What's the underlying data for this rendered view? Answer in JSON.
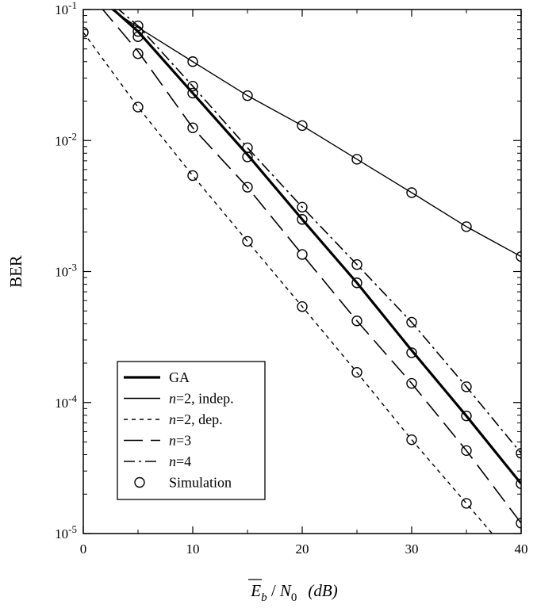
{
  "chart_data": {
    "type": "line",
    "xlabel": {
      "E": "E",
      "E_sub": "b",
      "slash": " / ",
      "N": "N",
      "N_sub": "0",
      "unit": "(dB)"
    },
    "ylabel": "BER",
    "xlim": [
      0,
      40
    ],
    "ylim": [
      1e-05,
      0.1
    ],
    "yscale": "log",
    "grid": false,
    "legend_position": "bottom-left",
    "x_ticks": [
      0,
      10,
      20,
      30,
      40
    ],
    "x_tick_labels": [
      "0",
      "10",
      "20",
      "30",
      "40"
    ],
    "y_ticks": [
      0.1,
      0.01,
      0.001,
      0.0001,
      1e-05
    ],
    "y_tick_labels": [
      {
        "base": "10",
        "exp": "-1"
      },
      {
        "base": "10",
        "exp": "-2"
      },
      {
        "base": "10",
        "exp": "-3"
      },
      {
        "base": "10",
        "exp": "-4"
      },
      {
        "base": "10",
        "exp": "-5"
      }
    ],
    "series": [
      {
        "name": "GA",
        "key": "ga",
        "style": "thick-solid",
        "x": [
          0,
          5,
          10,
          15,
          20,
          25,
          30,
          35,
          40
        ],
        "y": [
          0.16,
          0.068,
          0.023,
          0.0078,
          0.0025,
          0.00082,
          0.00025,
          7.9e-05,
          2.4e-05
        ]
      },
      {
        "name": "n=2, indep.",
        "name_italic": "n",
        "name_rest": "=2, indep.",
        "key": "n2i",
        "style": "thin-solid",
        "x": [
          0,
          5,
          10,
          15,
          20,
          25,
          30,
          35,
          40
        ],
        "y": [
          0.14,
          0.073,
          0.04,
          0.022,
          0.013,
          0.0072,
          0.004,
          0.0022,
          0.0013
        ]
      },
      {
        "name": "n=2, dep.",
        "name_italic": "n",
        "name_rest": "=2, dep.",
        "key": "n2d",
        "style": "dotted",
        "x": [
          0,
          5,
          10,
          15,
          20,
          25,
          30,
          35,
          40
        ],
        "y": [
          0.067,
          0.018,
          0.0054,
          0.0017,
          0.00054,
          0.00017,
          5.2e-05,
          1.7e-05,
          5.5e-06
        ]
      },
      {
        "name": "n=3",
        "name_italic": "n",
        "name_rest": "=3",
        "key": "n3",
        "style": "long-dash",
        "x": [
          0,
          5,
          10,
          15,
          20,
          25,
          30,
          35,
          40
        ],
        "y": [
          0.15,
          0.048,
          0.0125,
          0.0044,
          0.00135,
          0.00042,
          0.00014,
          4.3e-05,
          1.2e-05
        ]
      },
      {
        "name": "n=4",
        "name_italic": "n",
        "name_rest": "=4",
        "key": "n4",
        "style": "dash-dot",
        "x": [
          0,
          5,
          10,
          15,
          20,
          25,
          30,
          35,
          40
        ],
        "y": [
          0.17,
          0.075,
          0.026,
          0.0088,
          0.0031,
          0.00113,
          0.00041,
          0.000132,
          4.1e-05
        ]
      },
      {
        "name": "Simulation",
        "key": "sim",
        "style": "markers",
        "x": [
          0,
          5,
          5,
          5,
          5,
          5,
          10,
          10,
          10,
          10,
          10,
          15,
          15,
          15,
          15,
          15,
          20,
          20,
          20,
          20,
          20,
          25,
          25,
          25,
          25,
          25,
          30,
          30,
          30,
          30,
          30,
          35,
          35,
          35,
          35,
          35,
          40,
          40,
          40,
          40,
          40
        ],
        "y": [
          0.067,
          0.075,
          0.068,
          0.062,
          0.046,
          0.018,
          0.04,
          0.026,
          0.023,
          0.0125,
          0.0054,
          0.022,
          0.0088,
          0.0075,
          0.0044,
          0.0017,
          0.013,
          0.0031,
          0.0025,
          0.00135,
          0.00054,
          0.0072,
          0.00113,
          0.00082,
          0.00042,
          0.00017,
          0.004,
          0.00041,
          0.00024,
          0.00014,
          5.2e-05,
          0.0022,
          0.000132,
          7.9e-05,
          4.3e-05,
          1.7e-05,
          0.0013,
          4.1e-05,
          2.4e-05,
          1.2e-05,
          5.5e-06
        ]
      }
    ]
  }
}
